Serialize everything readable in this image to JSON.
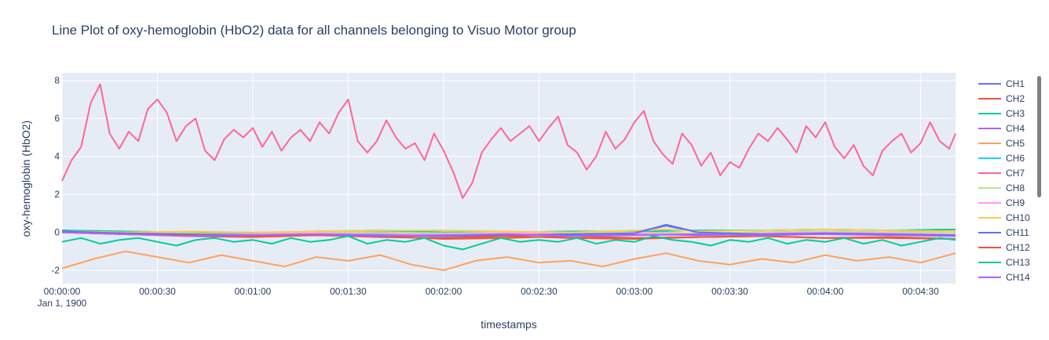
{
  "chart_data": {
    "type": "line",
    "title": "Line Plot of oxy-hemoglobin (HbO2) data for all channels belonging to Visuo Motor group",
    "xlabel": "timestamps",
    "ylabel": "oxy-hemoglobin (HbO2)",
    "x_date_label": "Jan 1, 1900",
    "x_ticks": [
      "00:00:00",
      "00:00:30",
      "00:01:00",
      "00:01:30",
      "00:02:00",
      "00:02:30",
      "00:03:00",
      "00:03:30",
      "00:04:00",
      "00:04:30"
    ],
    "x_tick_seconds": [
      0,
      30,
      60,
      90,
      120,
      150,
      180,
      210,
      240,
      270
    ],
    "xlim_seconds": [
      0,
      281
    ],
    "y_ticks": [
      -2,
      0,
      2,
      4,
      6,
      8
    ],
    "ylim": [
      -2.7,
      8.4
    ],
    "grid": true,
    "legend_position": "right",
    "background_color": "#e5ecf6",
    "series": [
      {
        "name": "CH1",
        "color": "#636efa",
        "x": [
          0,
          20,
          40,
          60,
          80,
          100,
          120,
          140,
          160,
          170,
          180,
          190,
          200,
          220,
          240,
          260,
          281
        ],
        "y": [
          0.1,
          0.0,
          -0.1,
          -0.15,
          -0.1,
          -0.05,
          -0.1,
          -0.15,
          -0.1,
          -0.05,
          0.0,
          0.35,
          0.0,
          -0.1,
          -0.05,
          -0.1,
          -0.1
        ]
      },
      {
        "name": "CH2",
        "color": "#ef553b",
        "x": [
          0,
          20,
          40,
          60,
          80,
          100,
          120,
          140,
          160,
          180,
          200,
          220,
          240,
          260,
          281
        ],
        "y": [
          0.05,
          -0.1,
          -0.2,
          -0.25,
          -0.15,
          -0.2,
          -0.35,
          -0.3,
          -0.2,
          -0.3,
          -0.25,
          -0.2,
          -0.3,
          -0.25,
          -0.35
        ]
      },
      {
        "name": "CH3",
        "color": "#00cc96",
        "x": [
          0,
          20,
          40,
          60,
          80,
          100,
          120,
          140,
          160,
          180,
          200,
          220,
          240,
          260,
          281
        ],
        "y": [
          0.1,
          0.05,
          0.0,
          -0.05,
          0.05,
          0.1,
          0.0,
          0.0,
          0.05,
          0.05,
          0.1,
          0.1,
          0.15,
          0.1,
          0.15
        ]
      },
      {
        "name": "CH4",
        "color": "#ab63fa",
        "x": [
          0,
          20,
          40,
          60,
          80,
          100,
          120,
          140,
          160,
          180,
          200,
          220,
          240,
          260,
          281
        ],
        "y": [
          0.0,
          -0.1,
          -0.15,
          -0.2,
          -0.1,
          -0.15,
          -0.2,
          -0.1,
          -0.15,
          -0.1,
          -0.15,
          -0.1,
          -0.05,
          -0.1,
          -0.15
        ]
      },
      {
        "name": "CH5",
        "color": "#ffa15a",
        "x": [
          0,
          10,
          20,
          30,
          40,
          50,
          60,
          70,
          80,
          90,
          100,
          110,
          120,
          130,
          140,
          150,
          160,
          170,
          180,
          190,
          200,
          210,
          220,
          230,
          240,
          250,
          260,
          270,
          281
        ],
        "y": [
          -1.9,
          -1.4,
          -1.0,
          -1.3,
          -1.6,
          -1.2,
          -1.5,
          -1.8,
          -1.3,
          -1.5,
          -1.2,
          -1.7,
          -2.0,
          -1.5,
          -1.3,
          -1.6,
          -1.5,
          -1.8,
          -1.4,
          -1.1,
          -1.5,
          -1.7,
          -1.4,
          -1.6,
          -1.2,
          -1.5,
          -1.3,
          -1.6,
          -1.1
        ]
      },
      {
        "name": "CH6",
        "color": "#19d3f3",
        "x": [
          0,
          20,
          40,
          60,
          80,
          100,
          120,
          140,
          160,
          180,
          200,
          220,
          240,
          260,
          281
        ],
        "y": [
          0.05,
          0.0,
          -0.05,
          -0.1,
          0.0,
          0.05,
          -0.05,
          0.0,
          -0.05,
          0.0,
          -0.05,
          0.0,
          0.05,
          0.0,
          0.05
        ]
      },
      {
        "name": "CH7",
        "color": "#ff6692",
        "x": [
          0,
          3,
          6,
          9,
          12,
          15,
          18,
          21,
          24,
          27,
          30,
          33,
          36,
          39,
          42,
          45,
          48,
          51,
          54,
          57,
          60,
          63,
          66,
          69,
          72,
          75,
          78,
          81,
          84,
          87,
          90,
          93,
          96,
          99,
          102,
          105,
          108,
          111,
          114,
          117,
          120,
          123,
          126,
          129,
          132,
          135,
          138,
          141,
          144,
          147,
          150,
          153,
          156,
          159,
          162,
          165,
          168,
          171,
          174,
          177,
          180,
          183,
          186,
          189,
          192,
          195,
          198,
          201,
          204,
          207,
          210,
          213,
          216,
          219,
          222,
          225,
          228,
          231,
          234,
          237,
          240,
          243,
          246,
          249,
          252,
          255,
          258,
          261,
          264,
          267,
          270,
          273,
          276,
          279,
          281
        ],
        "y": [
          2.7,
          3.8,
          4.5,
          6.8,
          7.8,
          5.2,
          4.4,
          5.3,
          4.8,
          6.5,
          7.0,
          6.3,
          4.8,
          5.6,
          6.0,
          4.3,
          3.8,
          4.9,
          5.4,
          5.0,
          5.5,
          4.5,
          5.3,
          4.3,
          5.0,
          5.4,
          4.8,
          5.8,
          5.2,
          6.3,
          7.0,
          4.8,
          4.2,
          4.8,
          5.9,
          5.0,
          4.4,
          4.7,
          3.8,
          5.2,
          4.3,
          3.2,
          1.8,
          2.6,
          4.2,
          4.9,
          5.5,
          4.8,
          5.2,
          5.6,
          4.8,
          5.5,
          6.1,
          4.6,
          4.2,
          3.3,
          4.0,
          5.3,
          4.4,
          4.9,
          5.8,
          6.4,
          4.8,
          4.1,
          3.6,
          5.2,
          4.6,
          3.5,
          4.2,
          3.0,
          3.7,
          3.4,
          4.4,
          5.2,
          4.8,
          5.5,
          4.9,
          4.2,
          5.6,
          5.0,
          5.8,
          4.5,
          3.9,
          4.6,
          3.5,
          3.0,
          4.3,
          4.8,
          5.2,
          4.2,
          4.7,
          5.8,
          4.8,
          4.4,
          5.2
        ]
      },
      {
        "name": "CH8",
        "color": "#b6e880",
        "x": [
          0,
          20,
          40,
          60,
          80,
          100,
          120,
          140,
          160,
          180,
          200,
          220,
          240,
          260,
          281
        ],
        "y": [
          0.0,
          0.0,
          -0.05,
          -0.1,
          0.0,
          0.0,
          -0.05,
          0.0,
          0.0,
          0.0,
          -0.05,
          0.0,
          0.05,
          0.0,
          0.0
        ]
      },
      {
        "name": "CH9",
        "color": "#ff97ff",
        "x": [
          0,
          20,
          40,
          60,
          80,
          100,
          120,
          140,
          160,
          180,
          200,
          220,
          240,
          260,
          281
        ],
        "y": [
          0.0,
          -0.05,
          -0.1,
          -0.1,
          -0.05,
          -0.1,
          -0.1,
          -0.05,
          -0.1,
          -0.05,
          -0.1,
          -0.05,
          0.0,
          -0.05,
          -0.1
        ]
      },
      {
        "name": "CH10",
        "color": "#fecb52",
        "x": [
          0,
          20,
          40,
          60,
          80,
          100,
          120,
          140,
          160,
          180,
          190,
          200,
          220,
          240,
          260,
          281
        ],
        "y": [
          0.05,
          0.0,
          0.05,
          0.0,
          0.05,
          0.1,
          0.1,
          0.05,
          0.0,
          0.1,
          0.15,
          0.05,
          0.1,
          0.15,
          0.1,
          0.05
        ]
      },
      {
        "name": "CH11",
        "color": "#636efa",
        "x": [
          0,
          20,
          40,
          60,
          80,
          100,
          120,
          140,
          160,
          180,
          190,
          200,
          220,
          240,
          260,
          281
        ],
        "y": [
          0.05,
          -0.05,
          -0.1,
          -0.15,
          -0.1,
          -0.15,
          -0.2,
          -0.15,
          -0.1,
          -0.05,
          0.4,
          0.0,
          -0.1,
          -0.05,
          -0.1,
          -0.15
        ]
      },
      {
        "name": "CH12",
        "color": "#ef553b",
        "x": [
          0,
          20,
          40,
          60,
          80,
          100,
          120,
          140,
          160,
          180,
          200,
          220,
          240,
          260,
          281
        ],
        "y": [
          0.0,
          -0.1,
          -0.15,
          -0.2,
          -0.15,
          -0.25,
          -0.3,
          -0.2,
          -0.3,
          -0.35,
          -0.25,
          -0.2,
          -0.3,
          -0.3,
          -0.35
        ]
      },
      {
        "name": "CH13",
        "color": "#00cc96",
        "x": [
          0,
          6,
          12,
          18,
          24,
          30,
          36,
          42,
          48,
          54,
          60,
          66,
          72,
          78,
          84,
          90,
          96,
          102,
          108,
          114,
          120,
          126,
          132,
          138,
          144,
          150,
          156,
          162,
          168,
          174,
          180,
          186,
          192,
          198,
          204,
          210,
          216,
          222,
          228,
          234,
          240,
          246,
          252,
          258,
          264,
          270,
          276,
          281
        ],
        "y": [
          -0.5,
          -0.3,
          -0.6,
          -0.4,
          -0.3,
          -0.5,
          -0.7,
          -0.4,
          -0.3,
          -0.5,
          -0.4,
          -0.6,
          -0.3,
          -0.5,
          -0.4,
          -0.2,
          -0.6,
          -0.4,
          -0.5,
          -0.3,
          -0.7,
          -0.9,
          -0.6,
          -0.3,
          -0.5,
          -0.4,
          -0.5,
          -0.3,
          -0.6,
          -0.4,
          -0.5,
          -0.2,
          -0.4,
          -0.5,
          -0.7,
          -0.4,
          -0.5,
          -0.3,
          -0.6,
          -0.4,
          -0.5,
          -0.3,
          -0.6,
          -0.4,
          -0.7,
          -0.5,
          -0.3,
          -0.4
        ]
      },
      {
        "name": "CH14",
        "color": "#ab63fa",
        "x": [
          0,
          20,
          40,
          60,
          80,
          100,
          120,
          140,
          160,
          180,
          200,
          220,
          240,
          260,
          281
        ],
        "y": [
          0.0,
          -0.1,
          -0.2,
          -0.15,
          -0.1,
          -0.2,
          -0.15,
          -0.1,
          -0.2,
          -0.15,
          -0.1,
          -0.15,
          -0.1,
          -0.15,
          -0.2
        ]
      }
    ]
  }
}
